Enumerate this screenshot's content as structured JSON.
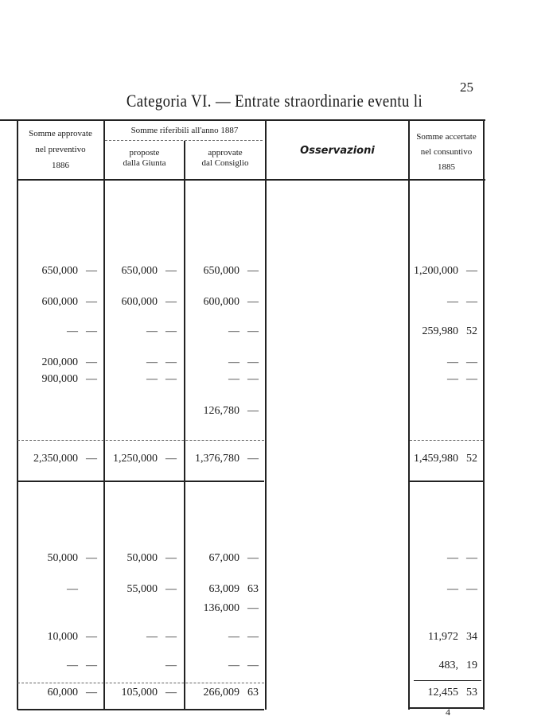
{
  "page_number": "25",
  "title": "Categoria VI. — Entrate straordinarie eventu li",
  "headers": {
    "col1": [
      "Somme approvate",
      "nel preventivo",
      "1886"
    ],
    "group": "Somme riferibili all'anno 1887",
    "col2": [
      "proposte",
      "dalla Giunta"
    ],
    "col3": [
      "approvate",
      "dal Consiglio"
    ],
    "col4": "Osservazioni",
    "col5": [
      "Somme accertate",
      "nel consuntivo",
      "1885"
    ]
  },
  "section1": {
    "rows": [
      [
        [
          "650,000",
          "—"
        ],
        [
          "650,000",
          "—"
        ],
        [
          "650,000",
          "—"
        ],
        [
          "1,200,000",
          "—"
        ]
      ],
      [
        [
          "600,000",
          "—"
        ],
        [
          "600,000",
          "—"
        ],
        [
          "600,000",
          "—"
        ],
        [
          "—",
          "—"
        ]
      ],
      [
        [
          "—",
          "—"
        ],
        [
          "—",
          "—"
        ],
        [
          "—",
          "—"
        ],
        [
          "259,980",
          "52"
        ]
      ],
      [
        [
          "200,000",
          "—"
        ],
        [
          "—",
          "—"
        ],
        [
          "—",
          "—"
        ],
        [
          "—",
          "—"
        ]
      ],
      [
        [
          "900,000",
          "—"
        ],
        [
          "—",
          "—"
        ],
        [
          "—",
          "—"
        ],
        [
          "—",
          "—"
        ]
      ],
      [
        [
          "",
          ""
        ],
        [
          "",
          ""
        ],
        [
          "126,780",
          "—"
        ],
        [
          "",
          ""
        ]
      ]
    ],
    "total": [
      [
        "2,350,000",
        "—"
      ],
      [
        "1,250,000",
        "—"
      ],
      [
        "1,376,780",
        "—"
      ],
      [
        "1,459,980",
        "52"
      ]
    ]
  },
  "section2": {
    "rows": [
      [
        [
          "50,000",
          "—"
        ],
        [
          "50,000",
          "—"
        ],
        [
          "67,000",
          "—"
        ],
        [
          "—",
          "—"
        ]
      ],
      [
        [
          "—",
          ""
        ],
        [
          "55,000",
          "—"
        ],
        [
          "63,009",
          "63"
        ],
        [
          "—",
          "—"
        ]
      ],
      [
        [
          "",
          ""
        ],
        [
          "",
          ""
        ],
        [
          "136,000",
          "—"
        ],
        [
          "",
          ""
        ]
      ],
      [
        [
          "10,000",
          "—"
        ],
        [
          "—",
          "—"
        ],
        [
          "—",
          "—"
        ],
        [
          "11,972",
          "34"
        ]
      ],
      [
        [
          "—",
          "—"
        ],
        [
          "",
          "—"
        ],
        [
          "—",
          "—"
        ],
        [
          "483,",
          "19"
        ]
      ]
    ],
    "total": [
      [
        "60,000",
        "—"
      ],
      [
        "105,000",
        "—"
      ],
      [
        "266,009",
        "63"
      ],
      [
        "12,455",
        "53"
      ]
    ]
  },
  "footer_mark": "4"
}
